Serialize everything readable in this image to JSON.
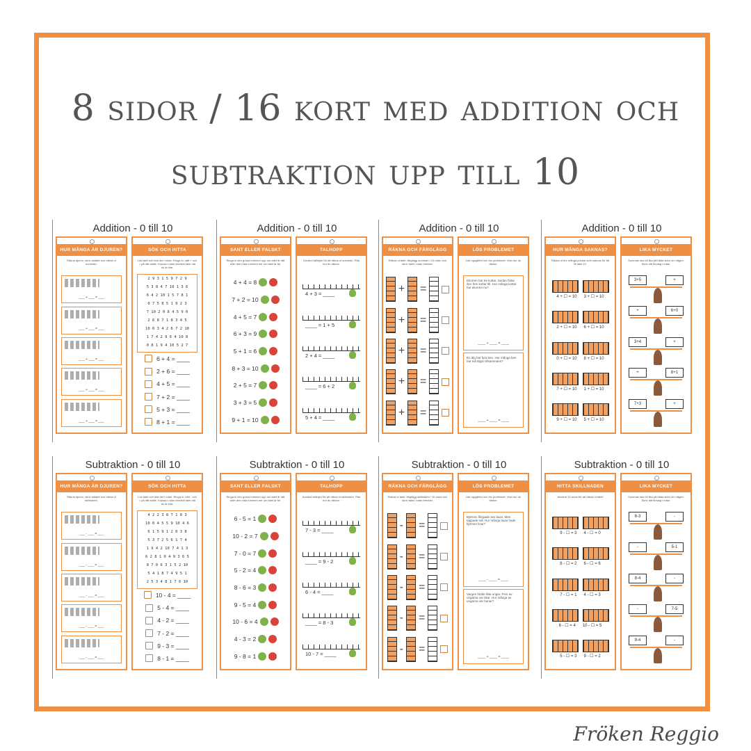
{
  "title": {
    "line1": "8 sidor / 16 kort med addition och",
    "line2": "subtraktion upp till 10"
  },
  "signature": "Fröken Reggio",
  "colors": {
    "frame": "#ef8f44",
    "header": "#ef8f44",
    "thumb_green": "#7fb24a",
    "thumb_red": "#d9443a"
  },
  "pages": [
    {
      "title": "Addition - 0 till 10",
      "cards": [
        {
          "header": "Hur många är djuren?",
          "instruction": "Räkna djuren, skriv antalet och räkna ut summan.",
          "type": "animals",
          "rows": [
            "___ + ___ = ___",
            "___ + ___ = ___",
            "___ + ___ = ___",
            "___ + ___ = ___",
            "___ + ___ = ___"
          ]
        },
        {
          "header": "Sök och Hitta",
          "instruction": "Lös talet och leta det i rutan. Ringa in, sätt + och = på rätt ställe. Kryssa i rutan bredvid talet när du är klar.",
          "type": "search",
          "grid": [
            "2 9 3 1 5 9 7 2 9",
            "5 3 8 4 7 10 1 3 6",
            "6 4 2 10 1 5 7 8 1",
            "0 7 5 8 5 1 9 2 3",
            "7 10 2 0 8 4 5 9 0",
            "2 6 8 7 1 8 3 4 5",
            "10 0 3 4 2 6 7 2 10",
            "1 7 4 2 9 6 4 10 8",
            "0 8 1 9 4 10 5 2 7"
          ],
          "rows": [
            "6 + 4 = ____",
            "2 + 6 = ____",
            "4 + 5 = ____",
            "7 + 2 = ____",
            "5 + 3 = ____",
            "8 + 1 = ____"
          ]
        }
      ]
    },
    {
      "title": "Addition - 0 till 10",
      "cards": [
        {
          "header": "Sant eller falskt",
          "instruction": "Ringa in den gröna tummen upp om talet är rätt eller den röda tummen ner om talet är fel.",
          "type": "truefalse",
          "rows": [
            "4 + 4 = 8",
            "7 + 2 = 10",
            "4 + 5 = 7",
            "6 + 3 = 9",
            "5 + 1 = 6",
            "8 + 3 = 10",
            "2 + 5 = 7",
            "3 + 3 = 5",
            "9 + 1 = 10"
          ]
        },
        {
          "header": "Talhopp",
          "instruction": "Använd tallinjen för att räkna ut summan. Rita hur du räknar.",
          "type": "numberline",
          "rows": [
            "",
            "4 + 3 = ____",
            "",
            "____ = 1 + 5",
            "",
            "2 + 4 = ____",
            "",
            "____ = 6 + 2",
            "",
            "5 + 4 = ____"
          ]
        }
      ]
    },
    {
      "title": "Addition - 0 till 10",
      "cards": [
        {
          "header": "Räkna och färglägg",
          "instruction": "Räkna ut talet, färglägg summan i 10-rutan och skriv talet i rutan bredvid.",
          "type": "tenframes",
          "rows": [
            "+ =",
            "+ =",
            "+ =",
            "+ =",
            "+ ="
          ]
        },
        {
          "header": "Lös problemet",
          "instruction": "Läs uppgiften och lös problemet. Visa hur du tänker.",
          "type": "problems",
          "problems": [
            {
              "text": "Ekorren har tre kottar. Sedan hittar den fem kottar till. Hur många kottar har ekorren nu?",
              "blanks": "____ + ____ = ____"
            },
            {
              "text": "En älg har fyra ben. Hur många ben har två älgar tillsammans?",
              "blanks": "____ + ____ = ____"
            }
          ]
        }
      ]
    },
    {
      "title": "Addition - 0 till 10",
      "cards": [
        {
          "header": "Hur många saknas?",
          "instruction": "Räkna ut hur många prickar som saknas för att få talet 10.",
          "type": "missing",
          "rows": [
            [
              "4 + ☐ = 10",
              "3 + ☐ = 10"
            ],
            [
              "2 + ☐ = 10",
              "6 + ☐ = 10"
            ],
            [
              "0 + ☐ = 10",
              "8 + ☐ = 10"
            ],
            [
              "7 + ☐ = 10",
              "1 + ☐ = 10"
            ],
            [
              "9 + ☐ = 10",
              "5 + ☐ = 10"
            ]
          ]
        },
        {
          "header": "Lika mycket",
          "instruction": "Summan ska bli lika på båda sidor om vågen. Skriv ditt förslag i rutan.",
          "type": "balance",
          "rows": [
            [
              "3+5",
              "+"
            ],
            [
              "+",
              "6+0"
            ],
            [
              "3+4",
              "+"
            ],
            [
              "+",
              "8+1"
            ],
            [
              "7+3",
              "+"
            ]
          ]
        }
      ]
    },
    {
      "title": "Subtraktion - 0 till 10",
      "cards": [
        {
          "header": "Hur många är djuren?",
          "instruction": "Räkna djuren, skriv antalet och räkna ut skillnaden.",
          "type": "animals",
          "rows": [
            "___ - ___ = ___",
            "___ - ___ = ___",
            "___ - ___ = ___",
            "___ - ___ = ___",
            "___ - ___ = ___"
          ]
        },
        {
          "header": "Sök och Hitta",
          "instruction": "Lös talet och leta det i rutan. Ringa in, sätt - och = på rätt ställe. Kryssa i rutan bredvid talet när du är klar.",
          "type": "search",
          "grid": [
            "4 2 2 3 8 7 1 0 3",
            "10 0 4 5 5 9 10 4 6",
            "6 1 5 9 1 2 0 3 8",
            "5 3 7 2 5 6 1 7 4",
            "1 9 4 2 10 7 4 1 3",
            "6 2 8 1 0 4 9 3 6 5",
            "8 7 0 6 3 1 5 2 10",
            "5 4 1 8 7 4 9 5 1",
            "2 5 3 4 8 1 7 6 10"
          ],
          "rows": [
            "10 - 4 = ____",
            "5 - 4 = ____",
            "4 - 2 = ____",
            "7 - 2 = ____",
            "9 - 3 = ____",
            "8 - 1 = ____"
          ]
        }
      ]
    },
    {
      "title": "Subtraktion - 0 till 10",
      "cards": [
        {
          "header": "Sant eller falskt",
          "instruction": "Ringa in den gröna tummen upp om talet är rätt eller den röda tummen ner om talet är fel.",
          "type": "truefalse",
          "rows": [
            "6 - 5 = 1",
            "10 - 2 = 7",
            "7 - 0 = 7",
            "5 - 2 = 4",
            "8 - 6 = 3",
            "9 - 5 = 4",
            "10 - 6 = 4",
            "4 - 3 = 2",
            "9 - 8 = 1"
          ]
        },
        {
          "header": "Talhopp",
          "instruction": "Använd tallinjen för att räkna ut skillnaden. Rita hur du räknar.",
          "type": "numberline",
          "rows": [
            "",
            "7 - 3 = ____",
            "",
            "____ = 9 - 2",
            "",
            "6 - 4 = ____",
            "",
            "____ = 8 - 3",
            "",
            "10 - 7 = ____"
          ]
        }
      ]
    },
    {
      "title": "Subtraktion - 0 till 10",
      "cards": [
        {
          "header": "Räkna och färglägg",
          "instruction": "Räkna ut talet, färglägg skillnaden i 10-rutan och skriv talet i rutan bredvid.",
          "type": "tenframes",
          "rows": [
            "- =",
            "- =",
            "- =",
            "- =",
            "- ="
          ]
        },
        {
          "header": "Lös problemet",
          "instruction": "Läs uppgiften och lös problemet. Visa hur du tänker.",
          "type": "problems",
          "problems": [
            {
              "text": "Björnen fångade sex laxar. Men tappade två. Hur många laxar hade björnen kvar?",
              "blanks": "____ - ____ = ____"
            },
            {
              "text": "Vargen födde åtta ungar. Fem av ungarna var tikar. Hur många av ungarna var hanar?",
              "blanks": "____ + ____ = ____"
            }
          ]
        }
      ]
    },
    {
      "title": "Subtraktion - 0 till 10",
      "cards": [
        {
          "header": "Hitta skillnaden",
          "instruction": "Använd 10-rutan för att räkna ut talet!",
          "type": "missing",
          "rows": [
            [
              "9 - ☐ = 3",
              "4 - ☐ = 0"
            ],
            [
              "8 - ☐ = 2",
              "6 - ☐ = 6"
            ],
            [
              "7 - ☐ = 1",
              "4 - ☐ = 3"
            ],
            [
              "6 - ☐ = 4",
              "10 - ☐ = 5"
            ],
            [
              "5 - ☐ = 3",
              "9 - ☐ = 2"
            ]
          ]
        },
        {
          "header": "Lika mycket",
          "instruction": "Summan ska bli lika på båda sidor om vågen. Skriv ditt förslag i rutan.",
          "type": "balance",
          "rows": [
            [
              "6-3",
              "-"
            ],
            [
              "-",
              "5-1"
            ],
            [
              "8-4",
              "-"
            ],
            [
              "-",
              "7-5"
            ],
            [
              "9-4",
              "-"
            ]
          ]
        }
      ]
    }
  ]
}
